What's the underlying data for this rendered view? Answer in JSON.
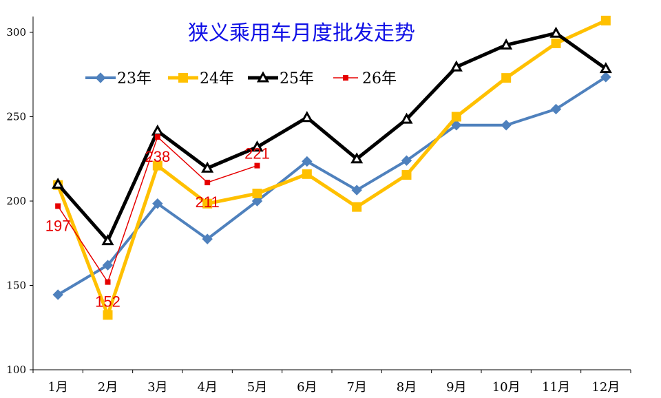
{
  "chart_data": {
    "type": "line",
    "title": "狭义乘用车月度批发走势",
    "categories": [
      "1月",
      "2月",
      "3月",
      "4月",
      "5月",
      "6月",
      "7月",
      "8月",
      "9月",
      "10月",
      "11月",
      "12月"
    ],
    "ylim": [
      100,
      300
    ],
    "yticks": [
      100,
      150,
      200,
      250,
      300
    ],
    "grid": false,
    "legend_position": "top-left",
    "series": [
      {
        "name": "23年",
        "color": "#4f81bd",
        "marker": "diamond",
        "values": [
          144.5,
          162,
          198.5,
          177.5,
          200,
          223.5,
          206.5,
          224,
          245,
          245,
          254.5,
          273.5
        ]
      },
      {
        "name": "24年",
        "color": "#ffc000",
        "marker": "square",
        "values": [
          209.5,
          132.5,
          221,
          198.5,
          204.5,
          216,
          196.5,
          215.5,
          250,
          273,
          293.5,
          307
        ]
      },
      {
        "name": "25年",
        "color": "#000000",
        "marker": "triangle",
        "values": [
          210,
          176.5,
          241.5,
          219.5,
          232,
          249.5,
          225,
          248.5,
          279.5,
          292.5,
          299.5,
          278.5
        ]
      },
      {
        "name": "26年",
        "color": "#e60000",
        "marker": "small-square",
        "values": [
          197,
          152,
          238,
          211,
          221,
          null,
          null,
          null,
          null,
          null,
          null,
          null
        ]
      }
    ],
    "annotations": [
      {
        "series": "26年",
        "index": 0,
        "text": "197"
      },
      {
        "series": "26年",
        "index": 1,
        "text": "152"
      },
      {
        "series": "26年",
        "index": 2,
        "text": "238"
      },
      {
        "series": "26年",
        "index": 3,
        "text": "211"
      },
      {
        "series": "26年",
        "index": 4,
        "text": "221"
      }
    ]
  }
}
